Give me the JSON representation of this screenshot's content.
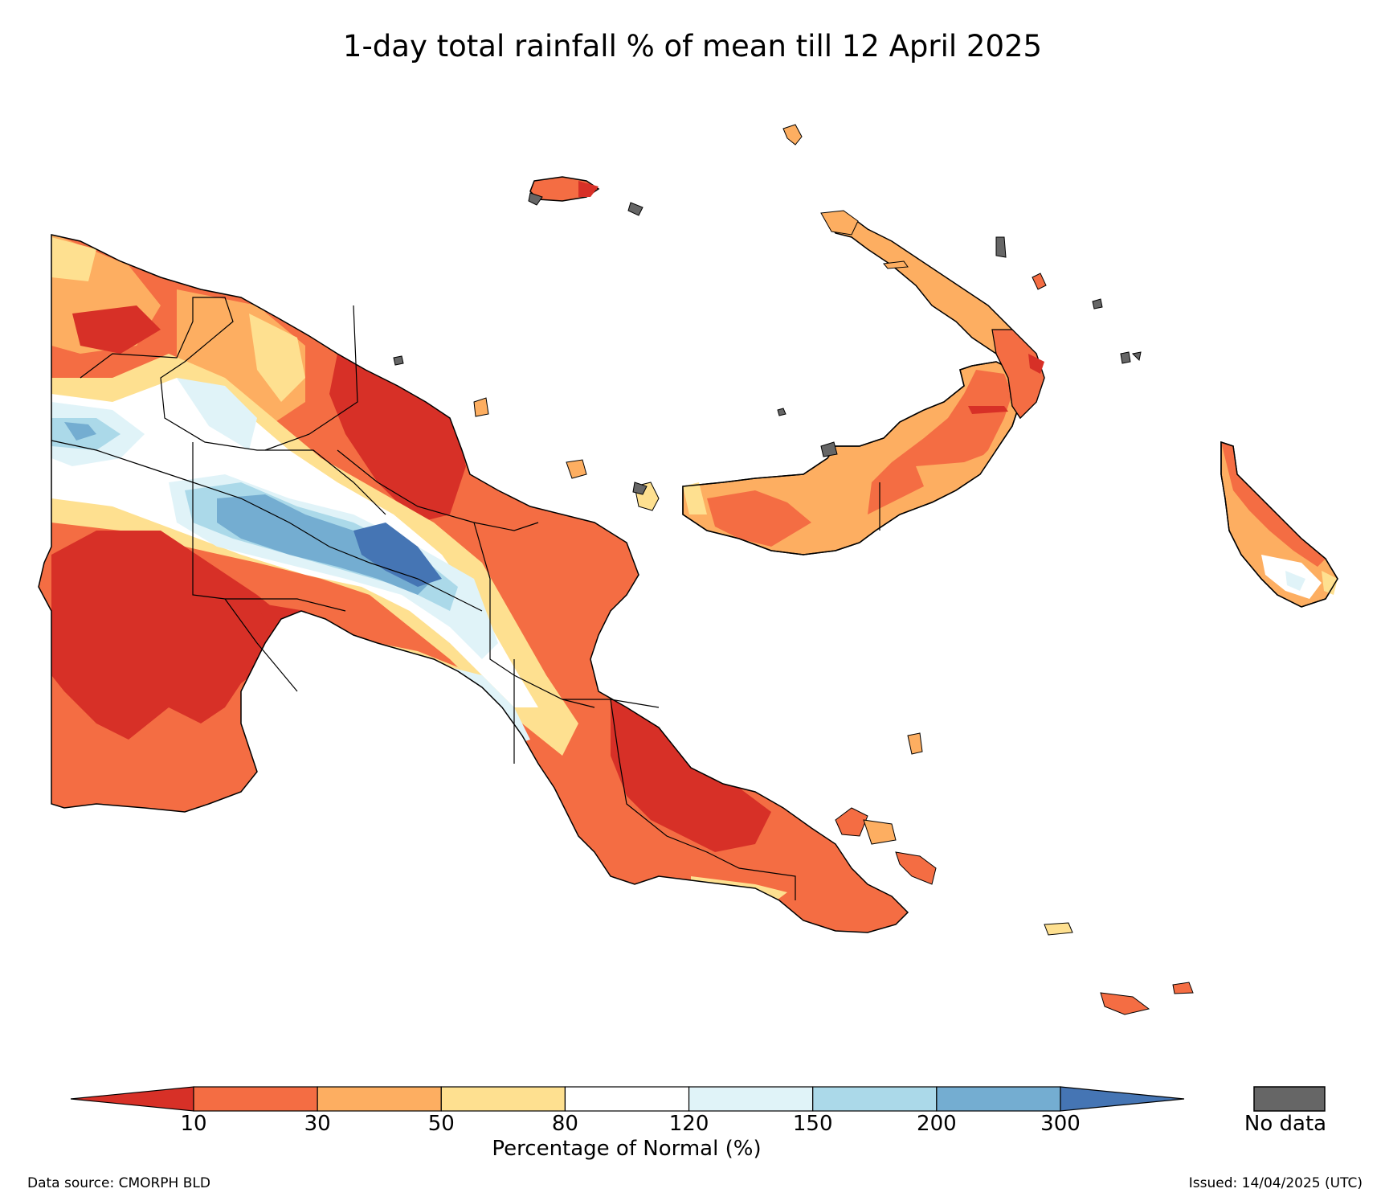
{
  "title": "1-day total rainfall % of mean till 12 April 2025",
  "colorbar": {
    "label": "Percentage of Normal (%)",
    "ticks": [
      "10",
      "30",
      "50",
      "80",
      "120",
      "150",
      "200",
      "300"
    ],
    "bins": [
      {
        "range": "<10",
        "color": "#d73027"
      },
      {
        "range": "10-30",
        "color": "#f46d43"
      },
      {
        "range": "30-50",
        "color": "#fdae61"
      },
      {
        "range": "50-80",
        "color": "#fee090"
      },
      {
        "range": "80-120",
        "color": "#ffffff"
      },
      {
        "range": "120-150",
        "color": "#e0f3f8"
      },
      {
        "range": "150-200",
        "color": "#abd9e9"
      },
      {
        "range": "200-300",
        "color": "#74add1"
      },
      {
        "range": ">300",
        "color": "#4575b4"
      }
    ],
    "nodata_label": "No data",
    "nodata_color": "#666666"
  },
  "footer": {
    "source": "Data source: CMORPH BLD",
    "issued": "Issued: 14/04/2025 (UTC)"
  }
}
